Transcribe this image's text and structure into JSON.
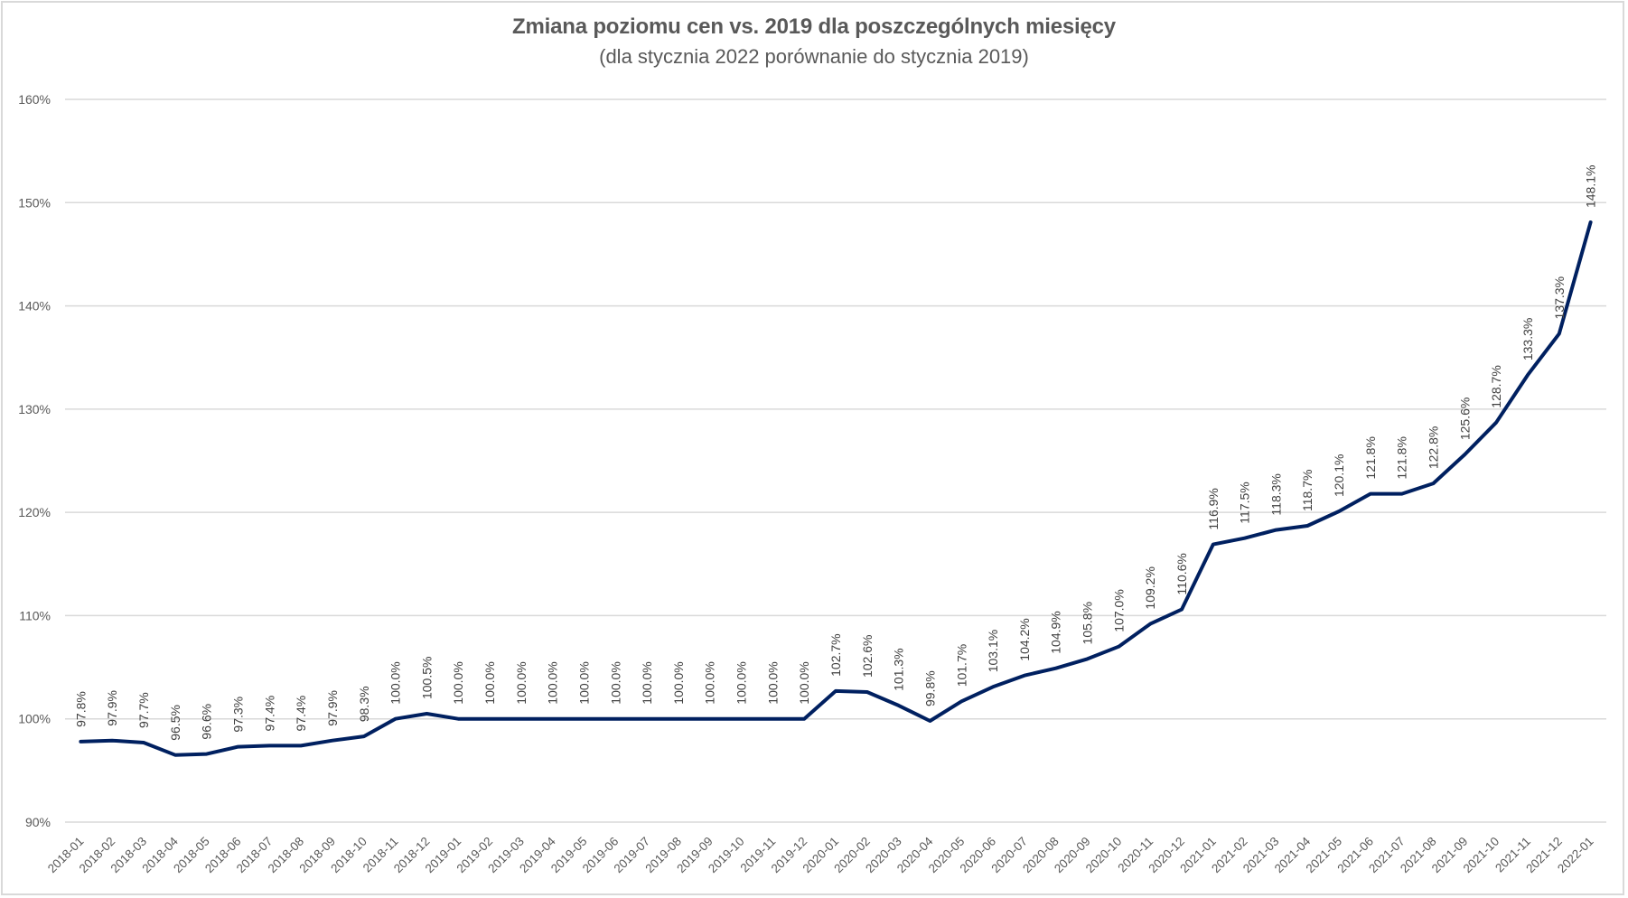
{
  "title": "Zmiana poziomu cen vs. 2019 dla poszczególnych miesięcy",
  "subtitle": "(dla stycznia 2022 porównanie do stycznia 2019)",
  "colors": {
    "line": "#002060",
    "grid": "#d9d9d9",
    "axis_text": "#595959",
    "label_text": "#404040",
    "frame": "#d9d9d9"
  },
  "chart_data": {
    "type": "line",
    "title": "Zmiana poziomu cen vs. 2019 dla poszczególnych miesięcy",
    "subtitle": "(dla stycznia 2022 porównanie do stycznia 2019)",
    "xlabel": "",
    "ylabel": "",
    "ylim": [
      90,
      160
    ],
    "yticks": [
      "90%",
      "100%",
      "110%",
      "120%",
      "130%",
      "140%",
      "150%",
      "160%"
    ],
    "ytick_values": [
      90,
      100,
      110,
      120,
      130,
      140,
      150,
      160
    ],
    "grid": true,
    "legend": "none",
    "categories": [
      "2018-01",
      "2018-02",
      "2018-03",
      "2018-04",
      "2018-05",
      "2018-06",
      "2018-07",
      "2018-08",
      "2018-09",
      "2018-10",
      "2018-11",
      "2018-12",
      "2019-01",
      "2019-02",
      "2019-03",
      "2019-04",
      "2019-05",
      "2019-06",
      "2019-07",
      "2019-08",
      "2019-09",
      "2019-10",
      "2019-11",
      "2019-12",
      "2020-01",
      "2020-02",
      "2020-03",
      "2020-04",
      "2020-05",
      "2020-06",
      "2020-07",
      "2020-08",
      "2020-09",
      "2020-10",
      "2020-11",
      "2020-12",
      "2021-01",
      "2021-02",
      "2021-03",
      "2021-04",
      "2021-05",
      "2021-06",
      "2021-07",
      "2021-08",
      "2021-09",
      "2021-10",
      "2021-11",
      "2021-12",
      "2022-01"
    ],
    "series": [
      {
        "name": "Zmiana poziomu cen",
        "values": [
          97.8,
          97.9,
          97.7,
          96.5,
          96.6,
          97.3,
          97.4,
          97.4,
          97.9,
          98.3,
          100.0,
          100.5,
          100.0,
          100.0,
          100.0,
          100.0,
          100.0,
          100.0,
          100.0,
          100.0,
          100.0,
          100.0,
          100.0,
          100.0,
          102.7,
          102.6,
          101.3,
          99.8,
          101.7,
          103.1,
          104.2,
          104.9,
          105.8,
          107.0,
          109.2,
          110.6,
          116.9,
          117.5,
          118.3,
          118.7,
          120.1,
          121.8,
          121.8,
          122.8,
          125.6,
          128.7,
          133.3,
          137.3,
          148.1
        ],
        "labels": [
          "97.8%",
          "97.9%",
          "97.7%",
          "96.5%",
          "96.6%",
          "97.3%",
          "97.4%",
          "97.4%",
          "97.9%",
          "98.3%",
          "100.0%",
          "100.5%",
          "100.0%",
          "100.0%",
          "100.0%",
          "100.0%",
          "100.0%",
          "100.0%",
          "100.0%",
          "100.0%",
          "100.0%",
          "100.0%",
          "100.0%",
          "100.0%",
          "102.7%",
          "102.6%",
          "101.3%",
          "99.8%",
          "101.7%",
          "103.1%",
          "104.2%",
          "104.9%",
          "105.8%",
          "107.0%",
          "109.2%",
          "110.6%",
          "116.9%",
          "117.5%",
          "118.3%",
          "118.7%",
          "120.1%",
          "121.8%",
          "121.8%",
          "122.8%",
          "125.6%",
          "128.7%",
          "133.3%",
          "137.3%",
          "148.1%"
        ]
      }
    ]
  }
}
